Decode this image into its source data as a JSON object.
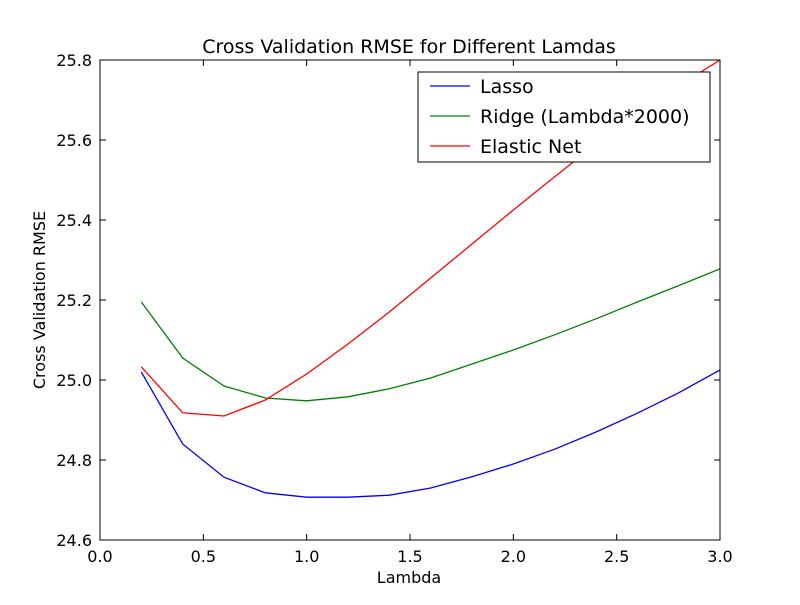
{
  "chart_data": {
    "type": "line",
    "title": "Cross Validation RMSE for Different Lamdas",
    "xlabel": "Lambda",
    "ylabel": "Cross Validation RMSE",
    "xlim": [
      0.0,
      3.0
    ],
    "ylim": [
      24.6,
      25.8
    ],
    "xticks": [
      0.0,
      0.5,
      1.0,
      1.5,
      2.0,
      2.5,
      3.0
    ],
    "xtick_labels": [
      "0.0",
      "0.5",
      "1.0",
      "1.5",
      "2.0",
      "2.5",
      "3.0"
    ],
    "yticks": [
      24.6,
      24.8,
      25.0,
      25.2,
      25.4,
      25.6,
      25.8
    ],
    "ytick_labels": [
      "24.6",
      "24.8",
      "25.0",
      "25.2",
      "25.4",
      "25.6",
      "25.8"
    ],
    "grid": false,
    "legend_position": "top-right",
    "x": [
      0.2,
      0.4,
      0.6,
      0.8,
      1.0,
      1.2,
      1.4,
      1.6,
      1.8,
      2.0,
      2.2,
      2.4,
      2.6,
      2.8,
      3.0
    ],
    "series": [
      {
        "name": "Lasso",
        "color": "#0000ff",
        "values": [
          25.02,
          24.84,
          24.757,
          24.718,
          24.707,
          24.707,
          24.712,
          24.73,
          24.758,
          24.79,
          24.827,
          24.87,
          24.917,
          24.968,
          25.025
        ]
      },
      {
        "name": "Ridge (Lambda*2000)",
        "color": "#008000",
        "values": [
          25.195,
          25.055,
          24.985,
          24.955,
          24.948,
          24.958,
          24.978,
          25.005,
          25.04,
          25.075,
          25.113,
          25.153,
          25.195,
          25.236,
          25.278
        ]
      },
      {
        "name": "Elastic Net",
        "color": "#ff0000",
        "values": [
          25.033,
          24.918,
          24.91,
          24.95,
          25.015,
          25.09,
          25.17,
          25.255,
          25.34,
          25.425,
          25.508,
          25.59,
          25.67,
          25.735,
          25.8
        ]
      }
    ]
  }
}
